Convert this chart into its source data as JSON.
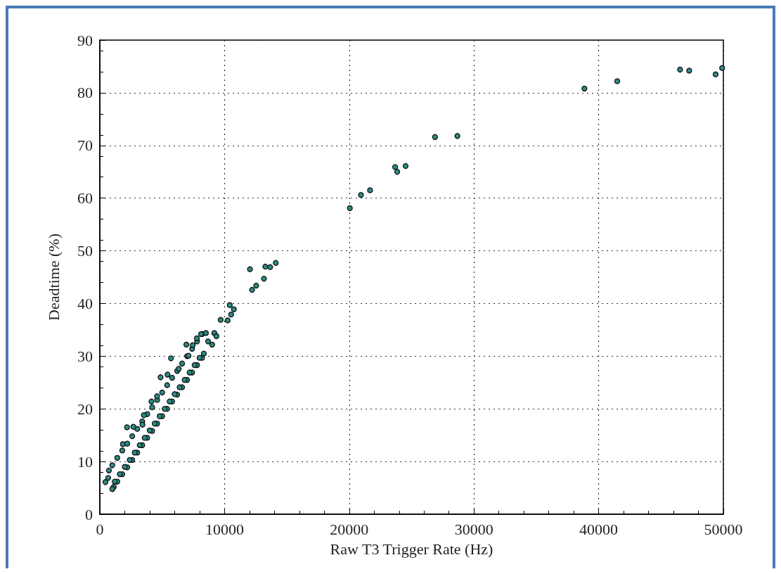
{
  "chart_data": {
    "type": "scatter",
    "xlabel": "Raw T3 Trigger Rate (Hz)",
    "ylabel": "Deadtime (%)",
    "xlim": [
      0,
      50000
    ],
    "xticks": [
      0,
      10000,
      20000,
      30000,
      40000,
      50000
    ],
    "ylim": [
      0,
      90
    ],
    "yticks": [
      0,
      10,
      20,
      30,
      40,
      50,
      60,
      70,
      80,
      90
    ],
    "grid": true,
    "marker": "circle",
    "series": [
      {
        "color": "#2a8c84",
        "x": [
          450,
          670,
          730,
          1120,
          1010,
          1850,
          1000,
          1400,
          1800,
          2200,
          2600,
          3000,
          3400,
          3800,
          4200,
          4600,
          5000,
          5400,
          5800,
          6200,
          6600,
          7000,
          7400,
          7800,
          8200,
          1200,
          1600,
          2000,
          2400,
          2800,
          3200,
          3600,
          4000,
          4400,
          4800,
          5200,
          5600,
          6000,
          6400,
          6800,
          7200,
          7600,
          8000,
          1000,
          1400,
          1800,
          2200,
          2600,
          3000,
          3400,
          3800,
          4200,
          4600,
          5000,
          5400,
          5800,
          6200,
          6600,
          7000,
          7400,
          7800,
          8200,
          4870,
          5430,
          4140,
          4590,
          2180,
          2690,
          3420,
          3530,
          6330,
          7110,
          5710,
          6940,
          7450,
          8120,
          8510,
          9180,
          9350,
          7780,
          9010,
          8680,
          8340,
          9690,
          10250,
          10420,
          10530,
          10750,
          12040,
          12210,
          12540,
          13160,
          13270,
          13660,
          14110,
          20050,
          20940,
          21670,
          23680,
          23850,
          24520,
          26880,
          28670,
          38860,
          41490,
          46530,
          47260,
          49380,
          49900
        ],
        "values": [
          6.1,
          6.9,
          8.3,
          5.2,
          4.8,
          13.3,
          4.8,
          6.2,
          7.6,
          8.9,
          10.3,
          11.7,
          13.1,
          14.5,
          15.8,
          17.2,
          18.6,
          20.0,
          21.4,
          22.7,
          24.1,
          25.5,
          26.9,
          28.3,
          29.7,
          6.2,
          7.6,
          9.0,
          10.3,
          11.7,
          13.1,
          14.5,
          15.9,
          17.2,
          18.6,
          20.0,
          21.4,
          22.8,
          24.1,
          25.5,
          26.9,
          28.3,
          29.7,
          9.3,
          10.7,
          12.1,
          13.4,
          14.8,
          16.2,
          17.6,
          19.0,
          20.3,
          21.7,
          23.1,
          24.5,
          25.9,
          27.2,
          28.6,
          30.0,
          31.4,
          32.8,
          34.2,
          26.0,
          26.5,
          21.4,
          22.4,
          16.5,
          16.6,
          17.0,
          18.8,
          27.6,
          30.1,
          29.6,
          32.2,
          32.1,
          34.2,
          34.4,
          34.4,
          33.8,
          33.4,
          32.2,
          32.8,
          30.5,
          36.9,
          36.8,
          39.7,
          37.9,
          38.9,
          46.5,
          42.6,
          43.4,
          44.7,
          47.0,
          46.9,
          47.7,
          58.1,
          60.6,
          61.5,
          65.9,
          65.0,
          66.1,
          71.6,
          71.8,
          80.8,
          82.2,
          84.4,
          84.2,
          83.5,
          84.7
        ]
      }
    ]
  }
}
